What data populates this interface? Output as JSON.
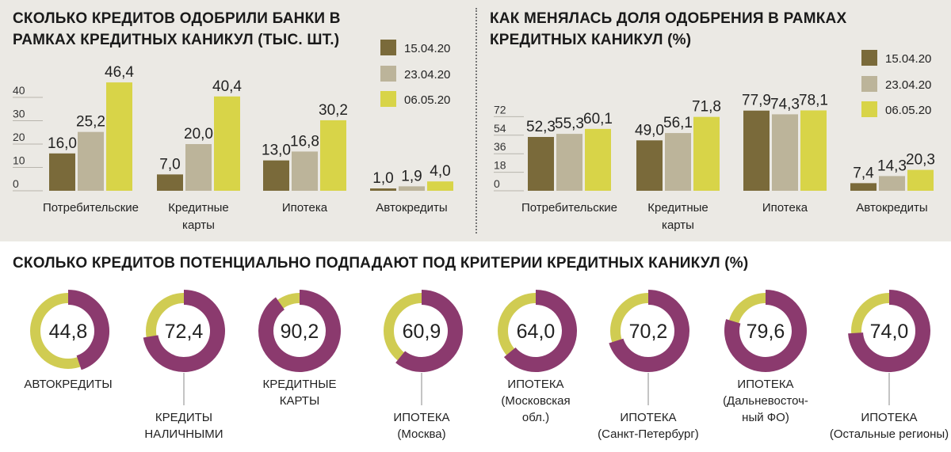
{
  "colors": {
    "date1": "#7a6a3a",
    "date2": "#bcb49a",
    "date3": "#d8d448",
    "donut_main": "#8b3a6e",
    "donut_rest": "#d0cc52",
    "panel_bg": "#ebe9e4"
  },
  "chart_data": [
    {
      "type": "bar",
      "title": "СКОЛЬКО КРЕДИТОВ ОДОБРИЛИ БАНКИ В РАМКАХ КРЕДИТНЫХ КАНИКУЛ (ТЫС. ШТ.)",
      "categories": [
        [
          "Потребительские"
        ],
        [
          "Кредитные",
          "карты"
        ],
        [
          "Ипотека"
        ],
        [
          "Автокредиты"
        ]
      ],
      "series": [
        {
          "name": "15.04.20",
          "values": [
            16.0,
            7.0,
            13.0,
            1.0
          ],
          "labels": [
            "16,0",
            "7,0",
            "13,0",
            "1,0"
          ]
        },
        {
          "name": "23.04.20",
          "values": [
            25.2,
            20.0,
            16.8,
            1.9
          ],
          "labels": [
            "25,2",
            "20,0",
            "16,8",
            "1,9"
          ]
        },
        {
          "name": "06.05.20",
          "values": [
            46.4,
            40.4,
            30.2,
            4.0
          ],
          "labels": [
            "46,4",
            "40,4",
            "30,2",
            "4,0"
          ]
        }
      ],
      "yticks": [
        "0",
        "10",
        "20",
        "30",
        "40"
      ],
      "ylim": [
        0,
        50
      ],
      "legend": "top-right"
    },
    {
      "type": "bar",
      "title": "КАК МЕНЯЛАСЬ ДОЛЯ ОДОБРЕНИЯ В РАМКАХ КРЕДИТНЫХ КАНИКУЛ (%)",
      "categories": [
        [
          "Потребительские"
        ],
        [
          "Кредитные",
          "карты"
        ],
        [
          "Ипотека"
        ],
        [
          "Автокредиты"
        ]
      ],
      "series": [
        {
          "name": "15.04.20",
          "values": [
            52.3,
            49.0,
            77.9,
            7.4
          ],
          "labels": [
            "52,3",
            "49,0",
            "77,9",
            "7,4"
          ]
        },
        {
          "name": "23.04.20",
          "values": [
            55.3,
            56.1,
            74.3,
            14.3
          ],
          "labels": [
            "55,3",
            "56,1",
            "74,3",
            "14,3"
          ]
        },
        {
          "name": "06.05.20",
          "values": [
            60.1,
            71.8,
            78.1,
            20.3
          ],
          "labels": [
            "60,1",
            "71,8",
            "78,1",
            "20,3"
          ]
        }
      ],
      "yticks": [
        "0",
        "18",
        "36",
        "54",
        "72"
      ],
      "ylim": [
        0,
        90
      ],
      "legend": "top-right"
    },
    {
      "type": "pie",
      "title": "СКОЛЬКО КРЕДИТОВ ПОТЕНЦИАЛЬНО ПОДПАДАЮТ ПОД КРИТЕРИИ КРЕДИТНЫХ КАНИКУЛ (%)",
      "items": [
        {
          "value": 44.8,
          "label": "44,8",
          "caption": [
            "АВТОКРЕДИТЫ"
          ]
        },
        {
          "value": 72.4,
          "label": "72,4",
          "caption": [
            "КРЕДИТЫ",
            "НАЛИЧНЫМИ"
          ]
        },
        {
          "value": 90.2,
          "label": "90,2",
          "caption": [
            "КРЕДИТНЫЕ",
            "КАРТЫ"
          ]
        },
        {
          "value": 60.9,
          "label": "60,9",
          "caption": [
            "ИПОТЕКА",
            "(Москва)"
          ]
        },
        {
          "value": 64.0,
          "label": "64,0",
          "caption": [
            "ИПОТЕКА",
            "(Московская",
            "обл.)"
          ]
        },
        {
          "value": 70.2,
          "label": "70,2",
          "caption": [
            "ИПОТЕКА",
            "(Санкт-Петербург)"
          ]
        },
        {
          "value": 79.6,
          "label": "79,6",
          "caption": [
            "ИПОТЕКА",
            "(Дальневосточ-",
            "ный ФО)"
          ]
        },
        {
          "value": 74.0,
          "label": "74,0",
          "caption": [
            "ИПОТЕКА",
            "(Остальные регионы)"
          ]
        }
      ]
    }
  ]
}
